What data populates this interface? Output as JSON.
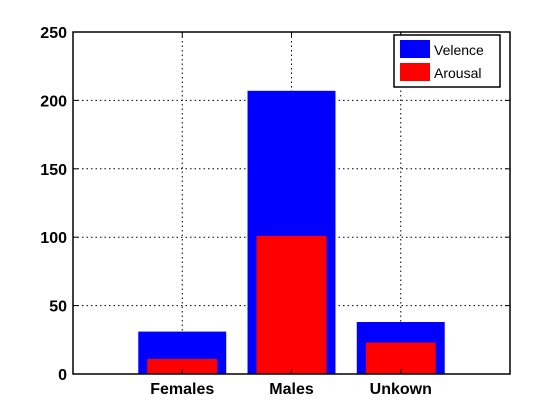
{
  "chart_data": {
    "type": "bar",
    "categories": [
      "Females",
      "Males",
      "Unkown"
    ],
    "series": [
      {
        "name": "Velence",
        "values": [
          31,
          207,
          38
        ],
        "color": "#0000ff"
      },
      {
        "name": "Arousal",
        "values": [
          11,
          101,
          23
        ],
        "color": "#ff0000"
      }
    ],
    "ylim": [
      0,
      250
    ],
    "yticks": [
      0,
      50,
      100,
      150,
      200,
      250
    ],
    "grid": true,
    "legend_position": "top-right",
    "title": "",
    "xlabel": "",
    "ylabel": ""
  }
}
